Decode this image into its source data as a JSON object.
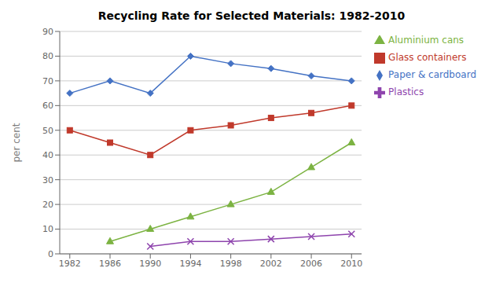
{
  "chart_data": {
    "type": "line",
    "title": "Recycling Rate for Selected Materials: 1982-2010",
    "ylabel": "per cent",
    "x": [
      1982,
      1986,
      1990,
      1994,
      1998,
      2002,
      2006,
      2010
    ],
    "xlim": [
      1981,
      2011
    ],
    "xticks": [
      1982,
      1986,
      1990,
      1994,
      1998,
      2002,
      2006,
      2010
    ],
    "ylim": [
      0,
      90
    ],
    "yticks": [
      0,
      10,
      20,
      30,
      40,
      50,
      60,
      70,
      80,
      90
    ],
    "grid": true,
    "legend": "right",
    "series": [
      {
        "name": "Paper & cardboard",
        "color": "#4472C4",
        "marker": "diamond",
        "values": [
          65,
          70,
          65,
          80,
          77,
          75,
          72,
          70
        ]
      },
      {
        "name": "Glass containers",
        "color": "#C0392B",
        "marker": "square",
        "values": [
          50,
          45,
          40,
          50,
          52,
          55,
          57,
          60
        ]
      },
      {
        "name": "Aluminium cans",
        "color": "#7CB342",
        "marker": "triangle",
        "values": [
          null,
          5,
          10,
          15,
          20,
          25,
          35,
          45
        ]
      },
      {
        "name": "Plastics",
        "color": "#8E44AD",
        "marker": "x",
        "values": [
          null,
          null,
          3,
          5,
          5,
          6,
          7,
          8
        ]
      }
    ]
  }
}
